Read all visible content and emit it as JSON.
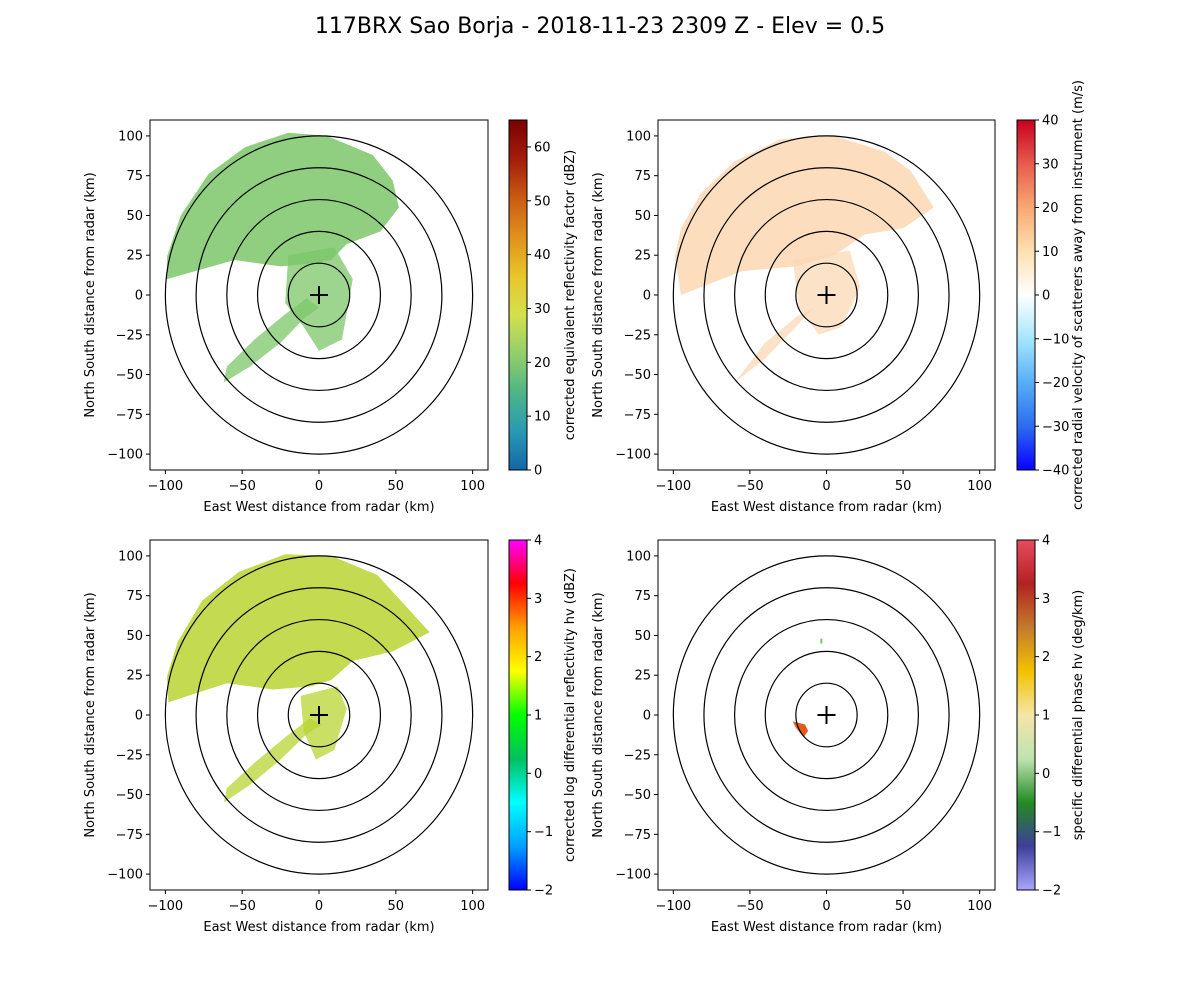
{
  "figure": {
    "title": "117BRX Sao Borja - 2018-11-23 2309 Z -  Elev = 0.5"
  },
  "chart_data": [
    {
      "type": "ppi",
      "field": "reflectivity",
      "xlabel": "East West distance from radar (km)",
      "ylabel": "North South distance from radar (km)",
      "xlim": [
        -110,
        110
      ],
      "ylim": [
        -110,
        110
      ],
      "xticks": [
        "−100",
        "−50",
        "0",
        "50",
        "100"
      ],
      "yticks": [
        "−100",
        "−75",
        "−50",
        "−25",
        "0",
        "25",
        "50",
        "75",
        "100"
      ],
      "range_rings_km": [
        20,
        40,
        60,
        80,
        100
      ],
      "colorbar": {
        "label": "corrected equivalent reflectivity factor (dBZ)",
        "range": [
          0,
          65
        ],
        "ticks": [
          "0",
          "10",
          "20",
          "30",
          "40",
          "50",
          "60"
        ],
        "colors": [
          "#1565a7",
          "#2a9ab4",
          "#4fb585",
          "#93cf6b",
          "#d4e04c",
          "#e9c529",
          "#e0911c",
          "#c95a12",
          "#a31c0d",
          "#7a0000"
        ]
      },
      "echo_color": "#7cc76a"
    },
    {
      "type": "ppi",
      "field": "velocity",
      "xlabel": "East West distance from radar (km)",
      "ylabel": "North South distance from radar (km)",
      "xlim": [
        -110,
        110
      ],
      "ylim": [
        -110,
        110
      ],
      "xticks": [
        "−100",
        "−50",
        "0",
        "50",
        "100"
      ],
      "yticks": [
        "−100",
        "−75",
        "−50",
        "−25",
        "0",
        "25",
        "50",
        "75",
        "100"
      ],
      "range_rings_km": [
        20,
        40,
        60,
        80,
        100
      ],
      "colorbar": {
        "label": "corrected radial velocity of scatterers away from instrument (m/s)",
        "range": [
          -40,
          40
        ],
        "ticks": [
          "−40",
          "−30",
          "−20",
          "−10",
          "0",
          "10",
          "20",
          "30",
          "40"
        ],
        "colors": [
          "#0a00ff",
          "#2b6cf0",
          "#57aef7",
          "#a6e6fb",
          "#ffffff",
          "#fde0b0",
          "#f8a873",
          "#e75b4e",
          "#c8001e"
        ]
      },
      "echo_color": "#fbd8b4"
    },
    {
      "type": "ppi",
      "field": "differential_reflectivity",
      "xlabel": "East West distance from radar (km)",
      "ylabel": "North South distance from radar (km)",
      "xlim": [
        -110,
        110
      ],
      "ylim": [
        -110,
        110
      ],
      "xticks": [
        "−100",
        "−50",
        "0",
        "50",
        "100"
      ],
      "yticks": [
        "−100",
        "−75",
        "−50",
        "−25",
        "0",
        "25",
        "50",
        "75",
        "100"
      ],
      "range_rings_km": [
        20,
        40,
        60,
        80,
        100
      ],
      "colorbar": {
        "label": "corrected log differential reflectivity hv (dBZ)",
        "range": [
          -2,
          4
        ],
        "ticks": [
          "−2",
          "−1",
          "0",
          "1",
          "2",
          "3",
          "4"
        ],
        "colors": [
          "#0000ff",
          "#00a0ff",
          "#00ffff",
          "#00c060",
          "#00ff00",
          "#ffff00",
          "#ffa000",
          "#ff0000",
          "#ff00ff"
        ]
      },
      "echo_color": "#b8d433"
    },
    {
      "type": "ppi",
      "field": "specific_differential_phase",
      "xlabel": "East West distance from radar (km)",
      "ylabel": "North South distance from radar (km)",
      "xlim": [
        -110,
        110
      ],
      "ylim": [
        -110,
        110
      ],
      "xticks": [
        "−100",
        "−50",
        "0",
        "50",
        "100"
      ],
      "yticks": [
        "−100",
        "−75",
        "−50",
        "−25",
        "0",
        "25",
        "50",
        "75",
        "100"
      ],
      "range_rings_km": [
        20,
        40,
        60,
        80,
        100
      ],
      "colorbar": {
        "label": "specific differential phase hv (deg/km)",
        "range": [
          -2,
          4
        ],
        "ticks": [
          "−2",
          "−1",
          "0",
          "1",
          "2",
          "3",
          "4"
        ],
        "colors": [
          "#a9a6ff",
          "#3d3f9a",
          "#228b22",
          "#bfe3b0",
          "#f5e6a8",
          "#f2c200",
          "#c47a2c",
          "#b22222",
          "#e84a5f"
        ]
      },
      "echo_color": "#e35a1e"
    }
  ]
}
